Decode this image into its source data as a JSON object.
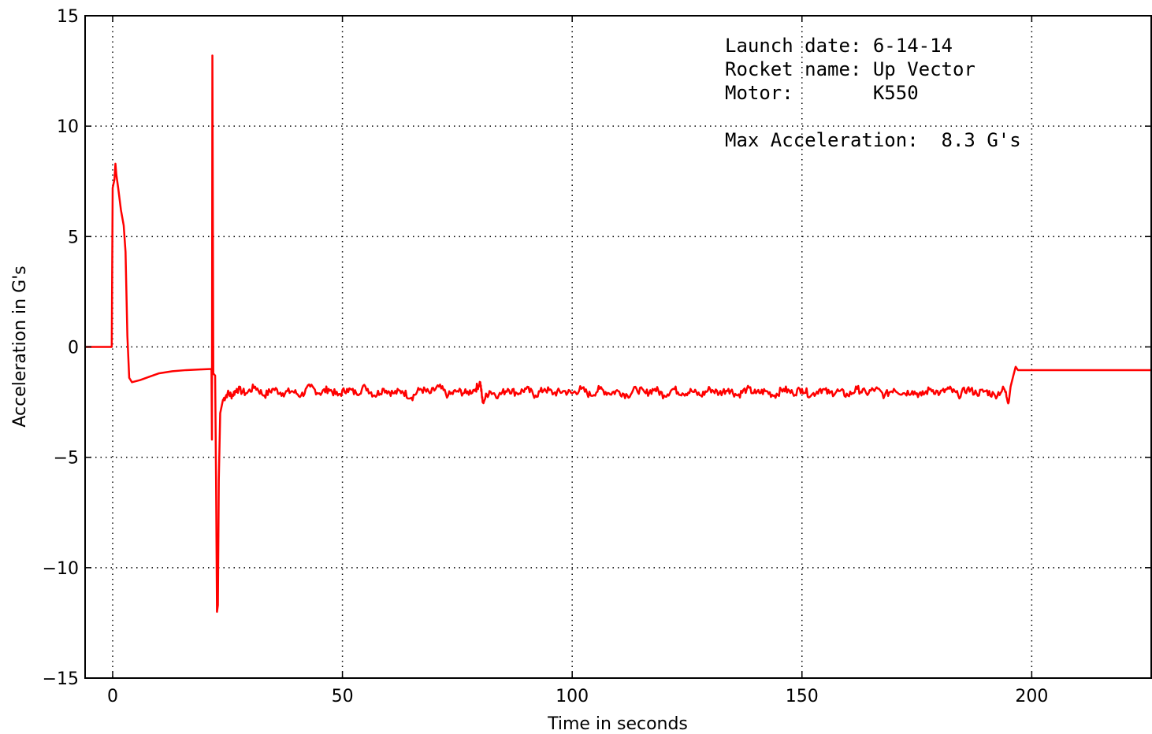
{
  "chart_data": {
    "type": "line",
    "xlabel": "Time in seconds",
    "ylabel": "Acceleration in G's",
    "xlim": [
      -6,
      226
    ],
    "ylim": [
      -15,
      15
    ],
    "xticks": [
      0,
      50,
      100,
      150,
      200
    ],
    "yticks": [
      15,
      10,
      5,
      0,
      -5,
      -10,
      -15
    ],
    "grid": true,
    "grid_style": "dotted",
    "colors": {
      "series": "#ff0000",
      "axes": "#000000",
      "grid": "#000000"
    },
    "series": [
      {
        "points": [
          [
            -6,
            0
          ],
          [
            -0.2,
            0
          ],
          [
            0,
            7.2
          ],
          [
            0.4,
            7.6
          ],
          [
            0.6,
            8.3
          ],
          [
            0.8,
            7.8
          ],
          [
            1.2,
            7.2
          ],
          [
            1.8,
            6.2
          ],
          [
            2.4,
            5.5
          ],
          [
            2.8,
            4.3
          ],
          [
            3.2,
            0.5
          ],
          [
            3.6,
            -1.4
          ],
          [
            4.2,
            -1.6
          ],
          [
            6,
            -1.5
          ],
          [
            8,
            -1.35
          ],
          [
            10,
            -1.2
          ],
          [
            13,
            -1.1
          ],
          [
            16,
            -1.05
          ],
          [
            19,
            -1.02
          ],
          [
            21.5,
            -1.0
          ],
          [
            21.6,
            -4.2
          ],
          [
            21.7,
            13.2
          ],
          [
            21.9,
            -1.2
          ],
          [
            22.3,
            -1.3
          ],
          [
            22.5,
            -6
          ],
          [
            22.7,
            -12
          ],
          [
            22.9,
            -11.7
          ],
          [
            23.1,
            -6
          ],
          [
            23.4,
            -3
          ],
          [
            24,
            -2.4
          ],
          [
            25,
            -2.1
          ],
          [
            26,
            -2.2
          ],
          [
            27,
            -1.9
          ],
          [
            29,
            -2.1
          ],
          [
            31,
            -1.8
          ],
          [
            33,
            -2.2
          ],
          [
            35,
            -1.9
          ],
          [
            37,
            -2.1
          ],
          [
            39,
            -2.0
          ],
          [
            41,
            -2.2
          ],
          [
            43,
            -1.8
          ],
          [
            45,
            -2.1
          ],
          [
            47,
            -1.9
          ],
          [
            49,
            -2.2
          ],
          [
            51,
            -1.9
          ],
          [
            53,
            -2.1
          ],
          [
            55,
            -1.8
          ],
          [
            57,
            -2.2
          ],
          [
            59,
            -1.9
          ],
          [
            61,
            -2.1
          ],
          [
            63,
            -2.0
          ],
          [
            65,
            -2.3
          ],
          [
            67,
            -1.9
          ],
          [
            69,
            -2.1
          ],
          [
            71,
            -1.8
          ],
          [
            73,
            -2.2
          ],
          [
            75,
            -2.0
          ],
          [
            77,
            -2.1
          ],
          [
            79,
            -1.9
          ],
          [
            80,
            -1.6
          ],
          [
            80.5,
            -2.5
          ],
          [
            82,
            -2.0
          ],
          [
            84,
            -2.2
          ],
          [
            86,
            -1.9
          ],
          [
            88,
            -2.1
          ],
          [
            90,
            -1.9
          ],
          [
            92,
            -2.2
          ],
          [
            94,
            -1.9
          ],
          [
            96,
            -2.1
          ],
          [
            98,
            -2.0
          ],
          [
            100,
            -2.1
          ],
          [
            102,
            -1.9
          ],
          [
            104,
            -2.2
          ],
          [
            106,
            -1.9
          ],
          [
            108,
            -2.1
          ],
          [
            110,
            -2.0
          ],
          [
            112,
            -2.2
          ],
          [
            114,
            -1.9
          ],
          [
            116,
            -2.1
          ],
          [
            118,
            -1.9
          ],
          [
            120,
            -2.2
          ],
          [
            122,
            -1.9
          ],
          [
            124,
            -2.1
          ],
          [
            126,
            -2.0
          ],
          [
            128,
            -2.2
          ],
          [
            130,
            -1.9
          ],
          [
            132,
            -2.1
          ],
          [
            134,
            -1.9
          ],
          [
            136,
            -2.2
          ],
          [
            138,
            -1.9
          ],
          [
            140,
            -2.1
          ],
          [
            142,
            -2.0
          ],
          [
            144,
            -2.2
          ],
          [
            146,
            -1.9
          ],
          [
            148,
            -2.1
          ],
          [
            150,
            -1.9
          ],
          [
            152,
            -2.2
          ],
          [
            154,
            -1.9
          ],
          [
            156,
            -2.1
          ],
          [
            158,
            -2.0
          ],
          [
            160,
            -2.2
          ],
          [
            162,
            -1.9
          ],
          [
            164,
            -2.1
          ],
          [
            166,
            -1.9
          ],
          [
            168,
            -2.2
          ],
          [
            170,
            -1.9
          ],
          [
            172,
            -2.1
          ],
          [
            174,
            -2.0
          ],
          [
            176,
            -2.2
          ],
          [
            178,
            -1.9
          ],
          [
            180,
            -2.1
          ],
          [
            182,
            -1.9
          ],
          [
            184,
            -2.2
          ],
          [
            186,
            -1.9
          ],
          [
            188,
            -2.1
          ],
          [
            190,
            -2.0
          ],
          [
            192,
            -2.2
          ],
          [
            194,
            -1.9
          ],
          [
            195,
            -2.5
          ],
          [
            195.4,
            -1.8
          ],
          [
            196,
            -1.3
          ],
          [
            196.5,
            -0.9
          ],
          [
            197,
            -1.05
          ],
          [
            200,
            -1.05
          ],
          [
            210,
            -1.05
          ],
          [
            226,
            -1.05
          ]
        ]
      }
    ],
    "annotations": [
      "Launch date: 6-14-14",
      "Rocket name: Up Vector",
      "Motor:       K550",
      "Max Acceleration:  8.3 G's"
    ]
  }
}
